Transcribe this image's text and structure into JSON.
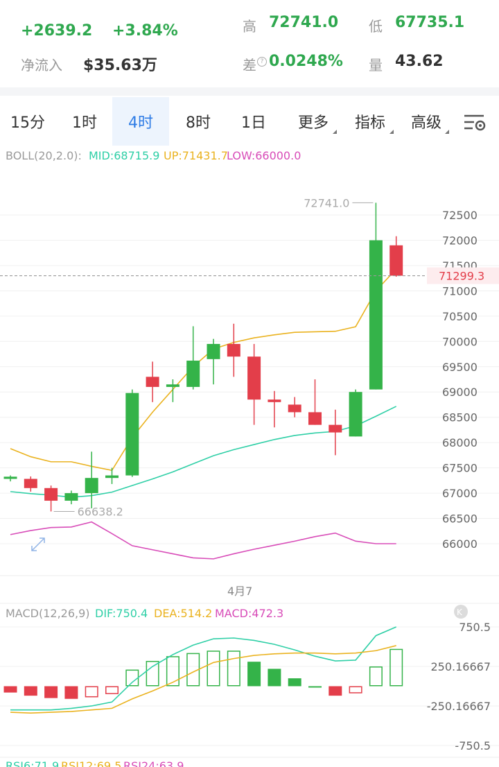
{
  "ticker": {
    "change_abs": "+2639.2",
    "change_pct": "+3.84%",
    "netflow_label": "净流入",
    "netflow_value": "$35.63万",
    "high_label": "高",
    "high_value": "72741.0",
    "low_label": "低",
    "low_value": "67735.1",
    "diff_label": "差",
    "diff_value": "0.0248%",
    "volume_label": "量",
    "volume_value": "43.62"
  },
  "timeframes": [
    "15分",
    "1时",
    "4时",
    "8时",
    "1日"
  ],
  "active_timeframe": "4时",
  "more_label": "更多",
  "indicator_label": "指标",
  "advanced_label": "高级",
  "boll": {
    "label": "BOLL(20,2.0):",
    "mid": "MID:68715.9",
    "up": "UP:71431.7",
    "low": "LOW:66000.0"
  },
  "price_axis": [
    "72500",
    "72000",
    "71500",
    "71000",
    "70500",
    "70000",
    "69500",
    "69000",
    "68500",
    "68000",
    "67500",
    "67000",
    "66500",
    "66000"
  ],
  "current_price": "71299.3",
  "max_label": "72741.0",
  "min_label": "66638.2",
  "date_label": "4月7",
  "macd": {
    "label": "MACD(12,26,9)",
    "dif": "DIF:750.4",
    "dea": "DEA:514.2",
    "macd": "MACD:472.3",
    "axis": [
      "750.5",
      "250.16667",
      "-250.16667",
      "-750.5"
    ]
  },
  "rsi": {
    "rsi6": "RSI6:71.9",
    "rsi12": "RSI12:69.5",
    "rsi24": "RSI24:63.9"
  },
  "colors": {
    "up": "#34b349",
    "down": "#e33e4a",
    "mid": "#2ecfa6",
    "upper": "#eab21e",
    "lower": "#d84cb8",
    "accent": "#2d7be5"
  },
  "chart_data": {
    "type": "candlestick",
    "interval": "4时",
    "ohlc": [
      {
        "o": 67282,
        "h": 67350,
        "l": 67232,
        "c": 67325
      },
      {
        "o": 67282,
        "h": 67330,
        "l": 67030,
        "c": 67100
      },
      {
        "o": 67100,
        "h": 67150,
        "l": 66638.2,
        "c": 66850
      },
      {
        "o": 66850,
        "h": 67050,
        "l": 66780,
        "c": 67000
      },
      {
        "o": 67000,
        "h": 67820,
        "l": 66700,
        "c": 67300
      },
      {
        "o": 67300,
        "h": 67500,
        "l": 67180,
        "c": 67350
      },
      {
        "o": 67350,
        "h": 69050,
        "l": 67320,
        "c": 68980
      },
      {
        "o": 69300,
        "h": 69600,
        "l": 68800,
        "c": 69100
      },
      {
        "o": 69100,
        "h": 69250,
        "l": 68800,
        "c": 69150
      },
      {
        "o": 69100,
        "h": 70300,
        "l": 69050,
        "c": 69620
      },
      {
        "o": 69650,
        "h": 70050,
        "l": 69150,
        "c": 69950
      },
      {
        "o": 69950,
        "h": 70350,
        "l": 69300,
        "c": 69700
      },
      {
        "o": 69700,
        "h": 69950,
        "l": 68350,
        "c": 68850
      },
      {
        "o": 68850,
        "h": 69020,
        "l": 68300,
        "c": 68800
      },
      {
        "o": 68750,
        "h": 68900,
        "l": 68500,
        "c": 68600
      },
      {
        "o": 68600,
        "h": 69250,
        "l": 68350,
        "c": 68350
      },
      {
        "o": 68350,
        "h": 68650,
        "l": 67750,
        "c": 68200
      },
      {
        "o": 68120,
        "h": 69050,
        "l": 68120,
        "c": 69000
      },
      {
        "o": 69050,
        "h": 72741.0,
        "l": 69050,
        "c": 72000
      },
      {
        "o": 71900,
        "h": 72080,
        "l": 71280,
        "c": 71299.3
      }
    ],
    "boll_mid": [
      67030,
      66990,
      66960,
      66920,
      66950,
      67020,
      67150,
      67280,
      67420,
      67580,
      67740,
      67860,
      67960,
      68060,
      68140,
      68190,
      68220,
      68330,
      68520,
      68715.9
    ],
    "boll_up": [
      67880,
      67720,
      67620,
      67620,
      67530,
      67450,
      68100,
      68600,
      69050,
      69500,
      69850,
      69980,
      70070,
      70130,
      70180,
      70190,
      70200,
      70290,
      71000,
      71431.7
    ],
    "boll_low": [
      66180,
      66260,
      66320,
      66330,
      66430,
      66200,
      65960,
      65880,
      65800,
      65720,
      65700,
      65800,
      65890,
      65970,
      66050,
      66140,
      66210,
      66050,
      66000,
      66000.0
    ],
    "macd_hist": [
      -80,
      -120,
      -150,
      -160,
      -140,
      -100,
      210,
      320,
      380,
      420,
      450,
      450,
      310,
      220,
      100,
      0,
      -120,
      -90,
      250,
      472.3
    ],
    "macd_dif": [
      -300,
      -300,
      -300,
      -280,
      -250,
      -200,
      50,
      250,
      400,
      520,
      600,
      610,
      580,
      530,
      460,
      380,
      320,
      330,
      640,
      750.4
    ],
    "macd_dea": [
      -330,
      -340,
      -330,
      -320,
      -300,
      -280,
      -160,
      -60,
      50,
      180,
      300,
      350,
      390,
      410,
      420,
      420,
      410,
      420,
      450,
      514.2
    ]
  }
}
